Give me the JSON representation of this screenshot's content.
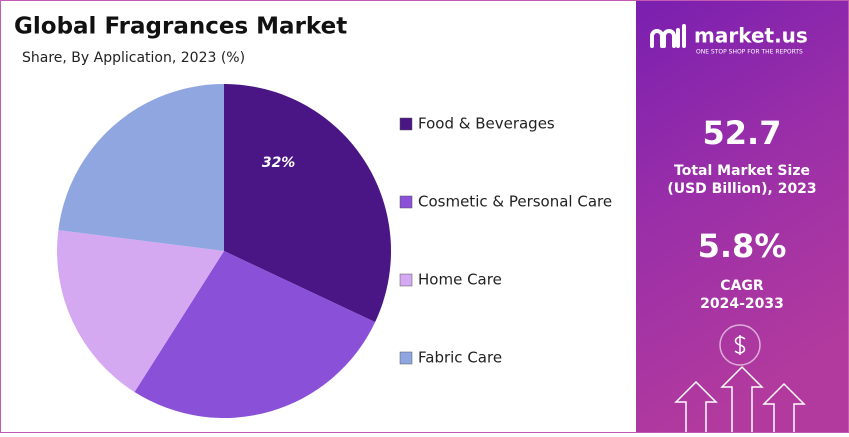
{
  "chart_data": {
    "type": "pie",
    "title": "Global Fragrances Market",
    "subtitle": "Share, By Application, 2023 (%)",
    "categories": [
      "Food & Beverages",
      "Cosmetic & Personal Care",
      "Home Care",
      "Fabric Care"
    ],
    "values": [
      32,
      27,
      18,
      23
    ],
    "value_labels": [
      "32%",
      null,
      null,
      null
    ],
    "colors": [
      "#4a1585",
      "#8a50d8",
      "#d5a9f1",
      "#8fa6e0"
    ]
  },
  "panel": {
    "brand": "market.us",
    "tagline": "ONE STOP SHOP FOR THE REPORTS",
    "market_size": "52.7",
    "market_size_label_1": "Total Market Size",
    "market_size_label_2": "(USD Billion), 2023",
    "cagr": "5.8%",
    "cagr_label_1": "CAGR",
    "cagr_label_2": "2024-2033"
  }
}
